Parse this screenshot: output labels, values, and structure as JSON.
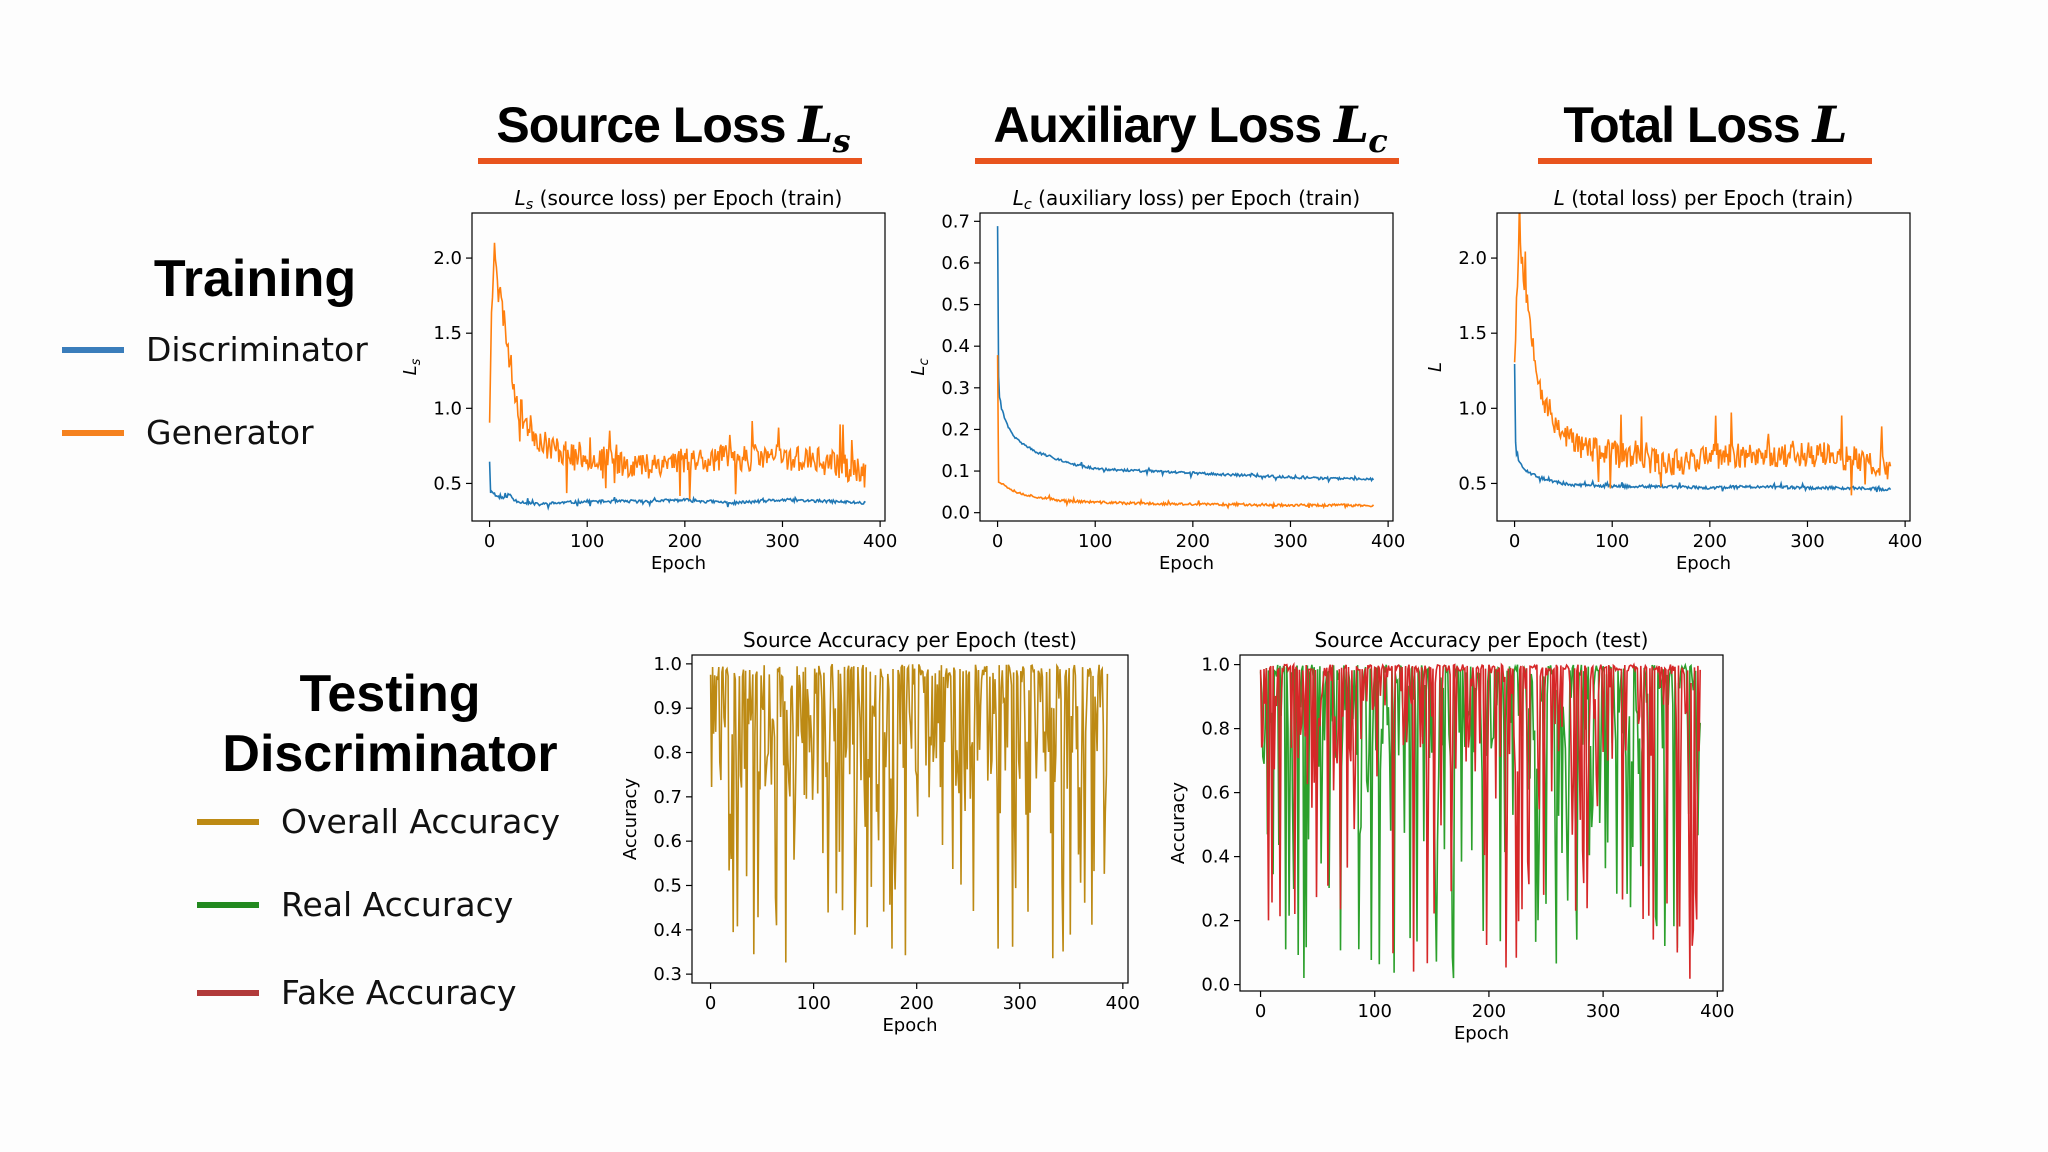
{
  "headers": {
    "source_loss": {
      "text": "Source Loss ",
      "sym": "L",
      "sub": "s"
    },
    "auxiliary_loss": {
      "text": "Auxiliary Loss ",
      "sym": "L",
      "sub": "c"
    },
    "total_loss": {
      "text": "Total Loss ",
      "sym": "L",
      "sub": ""
    }
  },
  "training": {
    "title": "Training",
    "legend": [
      {
        "label": "Discriminator",
        "color": "#3a7dbb"
      },
      {
        "label": "Generator",
        "color": "#f5821f"
      }
    ]
  },
  "testing": {
    "title_line1": "Testing",
    "title_line2": "Discriminator",
    "legend": [
      {
        "label": "Overall Accuracy",
        "color": "#bd8a14"
      },
      {
        "label": "Real Accuracy",
        "color": "#22891f"
      },
      {
        "label": "Fake Accuracy",
        "color": "#b13a3a"
      }
    ]
  },
  "chart_data": [
    {
      "type": "line",
      "title": "L_s (source loss) per Epoch (train)",
      "xlabel": "Epoch",
      "ylabel": "L_s",
      "xlim": [
        -18,
        405
      ],
      "ylim": [
        0.25,
        2.3
      ],
      "xticks": [
        0,
        100,
        200,
        300,
        400
      ],
      "yticks": [
        0.5,
        1.0,
        1.5,
        2.0
      ],
      "series": [
        {
          "name": "Discriminator",
          "color": "#1f77b4",
          "x": [
            0,
            1,
            3,
            6,
            10,
            15,
            20,
            25,
            30,
            40,
            50,
            70,
            100,
            150,
            200,
            250,
            300,
            350,
            385
          ],
          "y": [
            0.65,
            0.44,
            0.45,
            0.42,
            0.41,
            0.4,
            0.43,
            0.39,
            0.38,
            0.37,
            0.36,
            0.37,
            0.38,
            0.38,
            0.39,
            0.37,
            0.39,
            0.38,
            0.37
          ],
          "noise": 0.01,
          "seed": 11
        },
        {
          "name": "Generator",
          "color": "#ff7f0e",
          "x": [
            0,
            2,
            5,
            8,
            12,
            16,
            20,
            25,
            30,
            40,
            50,
            60,
            80,
            100,
            130,
            160,
            200,
            250,
            300,
            350,
            385
          ],
          "y": [
            0.95,
            1.6,
            2.15,
            1.9,
            1.7,
            1.55,
            1.35,
            1.15,
            1.0,
            0.88,
            0.8,
            0.75,
            0.7,
            0.68,
            0.64,
            0.62,
            0.66,
            0.67,
            0.68,
            0.64,
            0.56
          ],
          "noise": 0.09,
          "seed": 23
        }
      ]
    },
    {
      "type": "line",
      "title": "L_c (auxiliary loss) per Epoch (train)",
      "xlabel": "Epoch",
      "ylabel": "L_c",
      "xlim": [
        -18,
        405
      ],
      "ylim": [
        -0.02,
        0.72
      ],
      "xticks": [
        0,
        100,
        200,
        300,
        400
      ],
      "yticks": [
        0.0,
        0.1,
        0.2,
        0.3,
        0.4,
        0.5,
        0.6,
        0.7
      ],
      "series": [
        {
          "name": "Discriminator",
          "color": "#1f77b4",
          "x": [
            0,
            1,
            2,
            4,
            7,
            10,
            15,
            20,
            30,
            40,
            60,
            80,
            100,
            150,
            200,
            250,
            300,
            350,
            385
          ],
          "y": [
            0.69,
            0.33,
            0.28,
            0.25,
            0.23,
            0.21,
            0.19,
            0.175,
            0.16,
            0.145,
            0.13,
            0.115,
            0.105,
            0.1,
            0.095,
            0.09,
            0.085,
            0.082,
            0.08
          ],
          "noise": 0.003,
          "seed": 31
        },
        {
          "name": "Generator",
          "color": "#ff7f0e",
          "x": [
            0,
            1,
            2,
            4,
            8,
            15,
            25,
            40,
            60,
            100,
            150,
            200,
            250,
            300,
            350,
            385
          ],
          "y": [
            0.38,
            0.08,
            0.075,
            0.07,
            0.065,
            0.055,
            0.045,
            0.038,
            0.03,
            0.025,
            0.022,
            0.02,
            0.02,
            0.018,
            0.018,
            0.017
          ],
          "noise": 0.003,
          "seed": 37
        }
      ]
    },
    {
      "type": "line",
      "title": "L (total loss) per Epoch (train)",
      "xlabel": "Epoch",
      "ylabel": "L",
      "xlim": [
        -18,
        405
      ],
      "ylim": [
        0.25,
        2.3
      ],
      "xticks": [
        0,
        100,
        200,
        300,
        400
      ],
      "yticks": [
        0.5,
        1.0,
        1.5,
        2.0
      ],
      "series": [
        {
          "name": "Discriminator",
          "color": "#1f77b4",
          "x": [
            0,
            1,
            2,
            4,
            7,
            10,
            15,
            20,
            30,
            40,
            60,
            100,
            150,
            200,
            250,
            300,
            350,
            385
          ],
          "y": [
            1.3,
            0.78,
            0.7,
            0.66,
            0.62,
            0.6,
            0.57,
            0.56,
            0.53,
            0.51,
            0.49,
            0.48,
            0.48,
            0.47,
            0.48,
            0.47,
            0.47,
            0.46
          ],
          "noise": 0.01,
          "seed": 43
        },
        {
          "name": "Generator",
          "color": "#ff7f0e",
          "x": [
            0,
            2,
            5,
            8,
            12,
            16,
            20,
            25,
            30,
            40,
            50,
            60,
            80,
            100,
            130,
            160,
            200,
            250,
            300,
            350,
            385
          ],
          "y": [
            1.35,
            1.7,
            2.2,
            1.95,
            1.75,
            1.6,
            1.4,
            1.2,
            1.05,
            0.92,
            0.84,
            0.78,
            0.72,
            0.7,
            0.66,
            0.64,
            0.68,
            0.69,
            0.7,
            0.66,
            0.58
          ],
          "noise": 0.09,
          "seed": 53
        }
      ]
    },
    {
      "type": "line",
      "title": "Source Accuracy per Epoch (test)",
      "xlabel": "Epoch",
      "ylabel": "Accuracy",
      "xlim": [
        -18,
        405
      ],
      "ylim": [
        0.28,
        1.02
      ],
      "xticks": [
        0,
        100,
        200,
        300,
        400
      ],
      "yticks": [
        0.3,
        0.4,
        0.5,
        0.6,
        0.7,
        0.8,
        0.9,
        1.0
      ],
      "series": [
        {
          "name": "Overall Accuracy",
          "color": "#bd8a14",
          "x": [
            0,
            385
          ],
          "y": [
            0.85,
            0.85
          ],
          "jitter": {
            "top": 1.0,
            "min": 0.32,
            "seed": 61
          }
        }
      ]
    },
    {
      "type": "line",
      "title": "Source Accuracy per Epoch (test)",
      "xlabel": "Epoch",
      "ylabel": "Accuracy",
      "xlim": [
        -18,
        405
      ],
      "ylim": [
        -0.02,
        1.03
      ],
      "xticks": [
        0,
        100,
        200,
        300,
        400
      ],
      "yticks": [
        0.0,
        0.2,
        0.4,
        0.6,
        0.8,
        1.0
      ],
      "series": [
        {
          "name": "Real Accuracy",
          "color": "#2ca02c",
          "x": [
            0,
            385
          ],
          "y": [
            0.7,
            0.7
          ],
          "jitter": {
            "top": 1.0,
            "min": 0.01,
            "seed": 71
          }
        },
        {
          "name": "Fake Accuracy",
          "color": "#d62728",
          "x": [
            0,
            385
          ],
          "y": [
            0.9,
            0.9
          ],
          "jitter": {
            "top": 1.0,
            "min": 0.0,
            "seed": 83,
            "sparse": true
          }
        }
      ]
    }
  ]
}
